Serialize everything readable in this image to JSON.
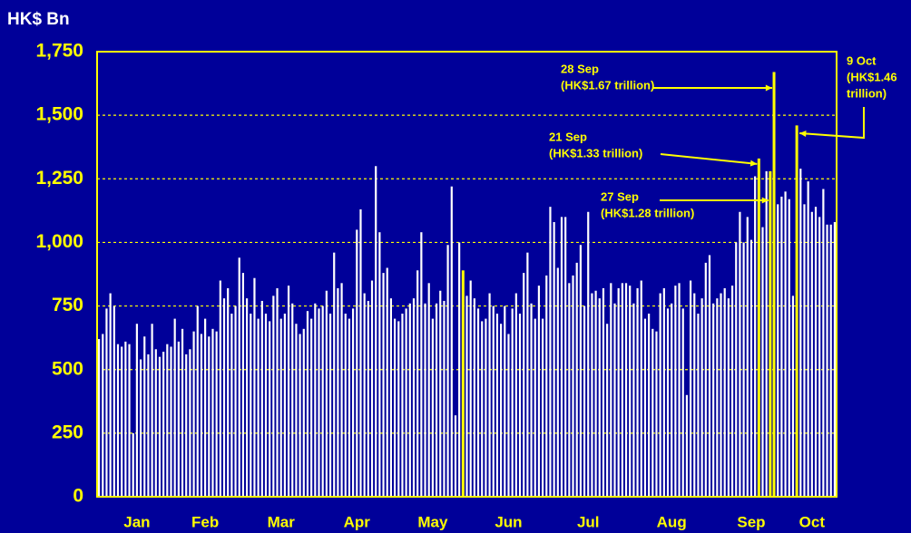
{
  "chart_data": {
    "type": "bar",
    "axis_title": "HK$ Bn",
    "color": "#ffffff",
    "highlight_color": "#ffff00",
    "background": "#000099",
    "ylim": [
      0,
      1750
    ],
    "yticks": [
      0,
      250,
      500,
      750,
      {
        "value": 1000,
        "label": "1,000"
      },
      {
        "value": 1250,
        "label": "1,250"
      },
      {
        "value": 1500,
        "label": "1,500"
      },
      {
        "value": 1750,
        "label": "1,750"
      }
    ],
    "grid": true,
    "categories": [
      null,
      null,
      null,
      null,
      null,
      null,
      null,
      null,
      null,
      null,
      "Jan",
      null,
      null,
      null,
      null,
      null,
      null,
      null,
      null,
      null,
      null,
      null,
      null,
      null,
      null,
      null,
      null,
      null,
      "Feb",
      null,
      null,
      null,
      null,
      null,
      null,
      null,
      null,
      null,
      null,
      null,
      null,
      null,
      null,
      null,
      null,
      null,
      null,
      null,
      "Mar",
      null,
      null,
      null,
      null,
      null,
      null,
      null,
      null,
      null,
      null,
      null,
      null,
      null,
      null,
      null,
      null,
      null,
      null,
      null,
      "Apr",
      null,
      null,
      null,
      null,
      null,
      null,
      null,
      null,
      null,
      null,
      null,
      null,
      null,
      null,
      null,
      null,
      null,
      null,
      null,
      "May",
      null,
      null,
      null,
      null,
      null,
      null,
      null,
      null,
      null,
      null,
      null,
      null,
      null,
      null,
      null,
      null,
      null,
      null,
      null,
      "Jun",
      null,
      null,
      null,
      null,
      null,
      null,
      null,
      null,
      null,
      null,
      null,
      null,
      null,
      null,
      null,
      null,
      null,
      null,
      null,
      null,
      "Jul",
      null,
      null,
      null,
      null,
      null,
      null,
      null,
      null,
      null,
      null,
      null,
      null,
      null,
      null,
      null,
      null,
      null,
      null,
      null,
      null,
      null,
      "Aug",
      null,
      null,
      null,
      null,
      null,
      null,
      null,
      null,
      null,
      null,
      null,
      null,
      null,
      null,
      null,
      null,
      null,
      null,
      null,
      null,
      "Sep",
      null,
      null,
      null,
      null,
      null,
      null,
      null,
      null,
      null,
      null,
      null,
      null,
      null,
      null,
      null,
      "Oct",
      null,
      null,
      null,
      null,
      null,
      null
    ],
    "values": [
      620,
      640,
      740,
      800,
      750,
      600,
      590,
      610,
      600,
      250,
      680,
      540,
      630,
      560,
      680,
      580,
      550,
      570,
      600,
      590,
      700,
      610,
      660,
      560,
      580,
      650,
      750,
      640,
      700,
      630,
      660,
      650,
      850,
      780,
      820,
      720,
      750,
      940,
      880,
      780,
      720,
      860,
      700,
      770,
      720,
      690,
      790,
      820,
      700,
      720,
      830,
      760,
      680,
      640,
      660,
      730,
      700,
      760,
      740,
      750,
      810,
      720,
      960,
      820,
      840,
      720,
      700,
      740,
      1050,
      1130,
      800,
      770,
      850,
      1300,
      1040,
      880,
      900,
      780,
      700,
      690,
      720,
      740,
      760,
      780,
      890,
      1040,
      760,
      840,
      700,
      760,
      810,
      770,
      990,
      1220,
      320,
      1000,
      890,
      790,
      850,
      780,
      740,
      690,
      700,
      800,
      750,
      720,
      680,
      750,
      640,
      740,
      800,
      720,
      880,
      960,
      760,
      700,
      830,
      700,
      870,
      1140,
      1080,
      900,
      1100,
      1100,
      840,
      870,
      920,
      990,
      750,
      1120,
      800,
      810,
      780,
      820,
      680,
      840,
      760,
      820,
      840,
      840,
      830,
      760,
      820,
      850,
      700,
      720,
      660,
      650,
      800,
      820,
      740,
      760,
      830,
      840,
      740,
      400,
      850,
      800,
      720,
      780,
      920,
      950,
      760,
      780,
      800,
      820,
      780,
      830,
      1000,
      1120,
      1000,
      1100,
      1010,
      1260,
      1330,
      1060,
      1280,
      1280,
      1670,
      1150,
      1180,
      1200,
      1170,
      790,
      1460,
      1290,
      1150,
      1240,
      1120,
      1140,
      1100,
      1210,
      1070,
      1070,
      1080
    ],
    "highlight_bars": [
      96,
      174,
      177,
      178,
      184
    ],
    "annotations": [
      {
        "lines": [
          "28 Sep",
          "(HK$1.67 trillion)"
        ],
        "bar": 178
      },
      {
        "lines": [
          "21 Sep",
          "(HK$1.33 trillion)"
        ],
        "bar": 174
      },
      {
        "lines": [
          "27 Sep",
          "(HK$1.28 trillion)"
        ],
        "bar": 177
      },
      {
        "lines": [
          "9 Oct",
          "(HK$1.46",
          "trillion)"
        ],
        "bar": 184
      }
    ]
  }
}
